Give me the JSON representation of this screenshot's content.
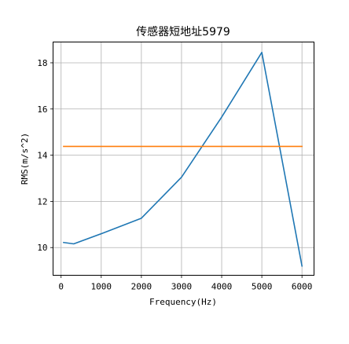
{
  "chart_data": {
    "type": "line",
    "title": "传感器短地址5979",
    "xlabel": "Frequency(Hz)",
    "ylabel": "RMS(m/s^2)",
    "xlim": [
      -200,
      6300
    ],
    "ylim": [
      8.8,
      18.9
    ],
    "xticks": [
      0,
      1000,
      2000,
      3000,
      4000,
      5000,
      6000
    ],
    "yticks": [
      10,
      12,
      14,
      16,
      18
    ],
    "grid": true,
    "series": [
      {
        "color": "#1f77b4",
        "x": [
          63,
          315,
          1000,
          2000,
          3000,
          4000,
          5000,
          6000
        ],
        "y": [
          10.22,
          10.16,
          10.6,
          11.27,
          13.05,
          15.65,
          18.45,
          9.2
        ]
      },
      {
        "color": "#ff7f0e",
        "x": [
          63,
          6000
        ],
        "y": [
          14.38,
          14.38
        ]
      }
    ]
  }
}
